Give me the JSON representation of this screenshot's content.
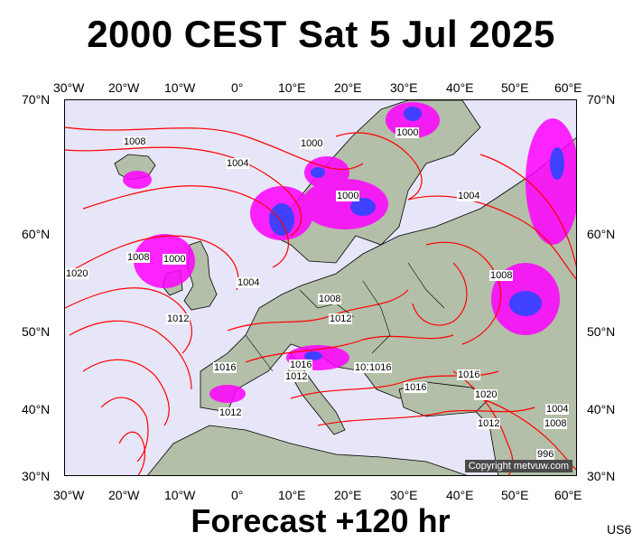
{
  "header": {
    "title": "2000 CEST Sat 5 Jul 2025"
  },
  "footer": {
    "forecast": "Forecast +120 hr",
    "code": "US6"
  },
  "axes": {
    "top_lon": [
      "30°W",
      "20°W",
      "10°W",
      "0°",
      "10°E",
      "20°E",
      "30°E",
      "40°E",
      "50°E",
      "60°E"
    ],
    "bottom_lon": [
      "30°W",
      "20°W",
      "10°W",
      "0°",
      "10°E",
      "20°E",
      "30°E",
      "40°E",
      "50°E",
      "60°E"
    ],
    "left_lat": [
      "70°N",
      "60°N",
      "50°N",
      "40°N",
      "30°N"
    ],
    "right_lat": [
      "70°N",
      "60°N",
      "50°N",
      "40°N",
      "30°N"
    ]
  },
  "map": {
    "copyright": "Copyright metvuw.com",
    "isobar_labels": [
      "1008",
      "1004",
      "1000",
      "1000",
      "1000",
      "1004",
      "1008",
      "1000",
      "1004",
      "1020",
      "1012",
      "1008",
      "1012",
      "1016",
      "1016",
      "1012",
      "1016",
      "1016",
      "1016",
      "1016",
      "1020",
      "1012",
      "1012",
      "1004",
      "1008",
      "996",
      "1008"
    ],
    "colors": {
      "ocean": "#e6e6f8",
      "land": "#b3bfa8",
      "isobar": "#ff0000",
      "rain_light": "#ff00ff",
      "rain_heavy": "#4040ff"
    }
  }
}
